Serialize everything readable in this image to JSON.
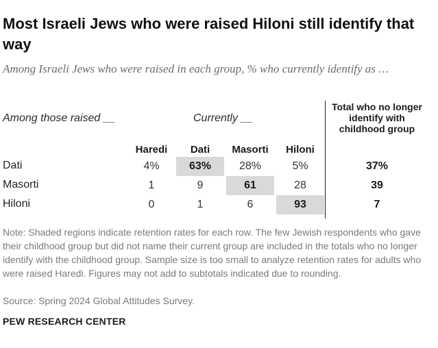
{
  "chart_data": {
    "type": "table",
    "title": "Most Israeli Jews who were raised Hiloni still identify that way",
    "subtitle": "Among Israeli Jews who were raised in each group, % who currently identify as …",
    "row_group_label": "Among those raised __",
    "column_group_label": "Currently __",
    "total_header": "Total who no longer identify with childhood group",
    "columns": [
      "Haredi",
      "Dati",
      "Masorti",
      "Hiloni"
    ],
    "rows": [
      {
        "label": "Dati",
        "values": [
          "4%",
          "63%",
          "28%",
          "5%"
        ],
        "shaded_index": 1,
        "total": "37%"
      },
      {
        "label": "Masorti",
        "values": [
          "1",
          "9",
          "61",
          "28"
        ],
        "shaded_index": 2,
        "total": "39"
      },
      {
        "label": "Hiloni",
        "values": [
          "0",
          "1",
          "6",
          "93"
        ],
        "shaded_index": 3,
        "total": "7"
      }
    ],
    "note": "Note: Shaded regions indicate retention rates for each row. The few Jewish respondents who gave their childhood group but did not name their current group are included in the totals who no longer identify with the childhood group. Sample size is too small to analyze retention rates for adults who were raised Haredi. Figures may not add to subtotals indicated due to rounding.",
    "source": "Source: Spring 2024 Global Attitudes Survey.",
    "brand": "PEW RESEARCH CENTER"
  },
  "colors": {
    "shade": "#d9d9d9",
    "subtitle": "#6b6b6b",
    "note": "#7a7a7a"
  }
}
